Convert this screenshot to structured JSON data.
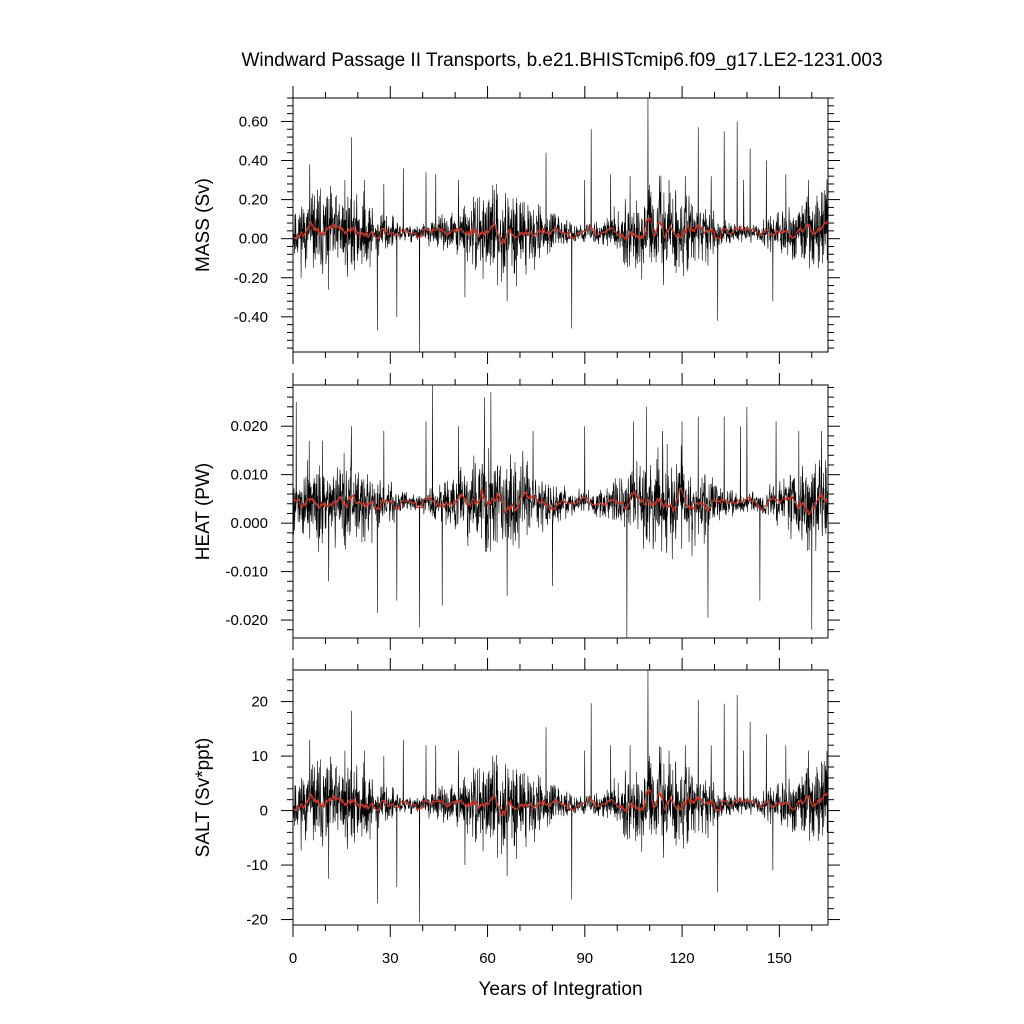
{
  "chart_data": [
    {
      "type": "line",
      "title": "Windward Passage II Transports, b.e21.BHISTcmip6.f09_g17.LE2-1231.003",
      "ylabel": "MASS (Sv)",
      "xlabel": "",
      "xlim": [
        0,
        165
      ],
      "ylim": [
        -0.58,
        0.72
      ],
      "yticks": [
        -0.4,
        -0.2,
        0.0,
        0.2,
        0.4,
        0.6
      ],
      "ytick_labels": [
        "-0.40",
        "-0.20",
        "0.00",
        "0.20",
        "0.40",
        "0.60"
      ],
      "xticks": [
        0,
        30,
        60,
        90,
        120,
        150
      ],
      "show_xtick_labels": false,
      "baseline": 0.03,
      "noise": 0.085,
      "spikes": [
        [
          5.2,
          0.38
        ],
        [
          11,
          -0.26
        ],
        [
          16,
          0.3
        ],
        [
          18,
          0.52
        ],
        [
          22,
          0.3
        ],
        [
          26,
          -0.47
        ],
        [
          28,
          0.28
        ],
        [
          32,
          -0.4
        ],
        [
          34,
          0.36
        ],
        [
          39,
          -0.58
        ],
        [
          41,
          0.34
        ],
        [
          44,
          0.33
        ],
        [
          51,
          0.3
        ],
        [
          53,
          -0.3
        ],
        [
          62,
          0.25
        ],
        [
          66,
          -0.32
        ],
        [
          78,
          0.44
        ],
        [
          86,
          -0.46
        ],
        [
          90,
          0.3
        ],
        [
          92,
          0.56
        ],
        [
          98,
          0.33
        ],
        [
          104,
          0.32
        ],
        [
          109.5,
          0.72
        ],
        [
          116,
          0.3
        ],
        [
          121,
          0.32
        ],
        [
          125,
          0.57
        ],
        [
          129,
          0.32
        ],
        [
          131,
          -0.42
        ],
        [
          133,
          0.55
        ],
        [
          137,
          0.6
        ],
        [
          139,
          0.3
        ],
        [
          141,
          0.46
        ],
        [
          146,
          0.4
        ],
        [
          148,
          -0.32
        ],
        [
          152,
          0.33
        ],
        [
          159,
          0.3
        ],
        [
          163,
          0.24
        ]
      ],
      "series": [
        {
          "name": "",
          "color": "#000000",
          "kind": "monthly",
          "seed": 11
        },
        {
          "name": "",
          "color": "#c0392b",
          "kind": "annual",
          "seed": 11
        }
      ]
    },
    {
      "type": "line",
      "title": "",
      "ylabel": "HEAT (PW)",
      "xlabel": "",
      "xlim": [
        0,
        165
      ],
      "ylim": [
        -0.0237,
        0.0285
      ],
      "yticks": [
        -0.02,
        -0.01,
        0.0,
        0.01,
        0.02
      ],
      "ytick_labels": [
        "-0.020",
        "-0.010",
        "0.000",
        "0.010",
        "0.020"
      ],
      "xticks": [
        0,
        30,
        60,
        90,
        120,
        150
      ],
      "show_xtick_labels": false,
      "baseline": 0.0042,
      "noise": 0.0038,
      "spikes": [
        [
          1,
          0.025
        ],
        [
          5,
          0.017
        ],
        [
          11,
          -0.012
        ],
        [
          18,
          0.02
        ],
        [
          26,
          -0.0185
        ],
        [
          28,
          0.019
        ],
        [
          32,
          -0.016
        ],
        [
          39,
          -0.0215
        ],
        [
          41,
          0.021
        ],
        [
          43,
          0.0285
        ],
        [
          46,
          -0.017
        ],
        [
          51,
          0.02
        ],
        [
          59,
          0.026
        ],
        [
          61,
          0.027
        ],
        [
          66,
          -0.015
        ],
        [
          74,
          0.019
        ],
        [
          80,
          -0.013
        ],
        [
          90,
          0.02
        ],
        [
          103,
          -0.0237
        ],
        [
          105,
          0.021
        ],
        [
          109,
          0.024
        ],
        [
          114,
          0.019
        ],
        [
          120,
          0.021
        ],
        [
          125,
          0.022
        ],
        [
          128,
          -0.0195
        ],
        [
          133,
          0.022
        ],
        [
          138,
          0.02
        ],
        [
          140,
          0.024
        ],
        [
          144,
          -0.016
        ],
        [
          149,
          0.021
        ],
        [
          156,
          0.019
        ],
        [
          160,
          -0.022
        ],
        [
          163,
          0.019
        ]
      ],
      "series": [
        {
          "name": "",
          "color": "#000000",
          "kind": "monthly",
          "seed": 27
        },
        {
          "name": "",
          "color": "#c0392b",
          "kind": "annual",
          "seed": 27
        }
      ]
    },
    {
      "type": "line",
      "title": "",
      "ylabel": "SALT (Sv*ppt)",
      "xlabel": "Years of Integration",
      "xlim": [
        0,
        165
      ],
      "ylim": [
        -21,
        25.8
      ],
      "yticks": [
        -20,
        -10,
        0,
        10,
        20
      ],
      "ytick_labels": [
        "-20",
        "-10",
        "0",
        "10",
        "20"
      ],
      "xticks": [
        0,
        30,
        60,
        90,
        120,
        150
      ],
      "xtick_labels": [
        "0",
        "30",
        "60",
        "90",
        "120",
        "150"
      ],
      "show_xtick_labels": true,
      "baseline": 1.1,
      "noise": 3.1,
      "spikes": [
        [
          5.2,
          13
        ],
        [
          11,
          -12.5
        ],
        [
          16,
          11
        ],
        [
          18,
          18.3
        ],
        [
          22,
          11
        ],
        [
          26,
          -17
        ],
        [
          28,
          10
        ],
        [
          32,
          -14
        ],
        [
          34,
          13
        ],
        [
          39,
          -20.5
        ],
        [
          41,
          12
        ],
        [
          44,
          12
        ],
        [
          51,
          11
        ],
        [
          53,
          -10
        ],
        [
          62,
          9
        ],
        [
          66,
          -12
        ],
        [
          78,
          15.3
        ],
        [
          86,
          -16.3
        ],
        [
          90,
          11
        ],
        [
          92,
          19.7
        ],
        [
          98,
          12
        ],
        [
          104,
          12
        ],
        [
          109.5,
          25.8
        ],
        [
          116,
          11
        ],
        [
          121,
          12
        ],
        [
          125,
          20.3
        ],
        [
          129,
          12
        ],
        [
          131,
          -15
        ],
        [
          133,
          19.6
        ],
        [
          137,
          21.2
        ],
        [
          139,
          11
        ],
        [
          141,
          16.3
        ],
        [
          146,
          14
        ],
        [
          148,
          -11
        ],
        [
          152,
          12
        ],
        [
          159,
          11
        ],
        [
          163,
          9
        ]
      ],
      "series": [
        {
          "name": "",
          "color": "#000000",
          "kind": "monthly",
          "seed": 11
        },
        {
          "name": "",
          "color": "#c0392b",
          "kind": "annual",
          "seed": 11
        }
      ]
    }
  ]
}
